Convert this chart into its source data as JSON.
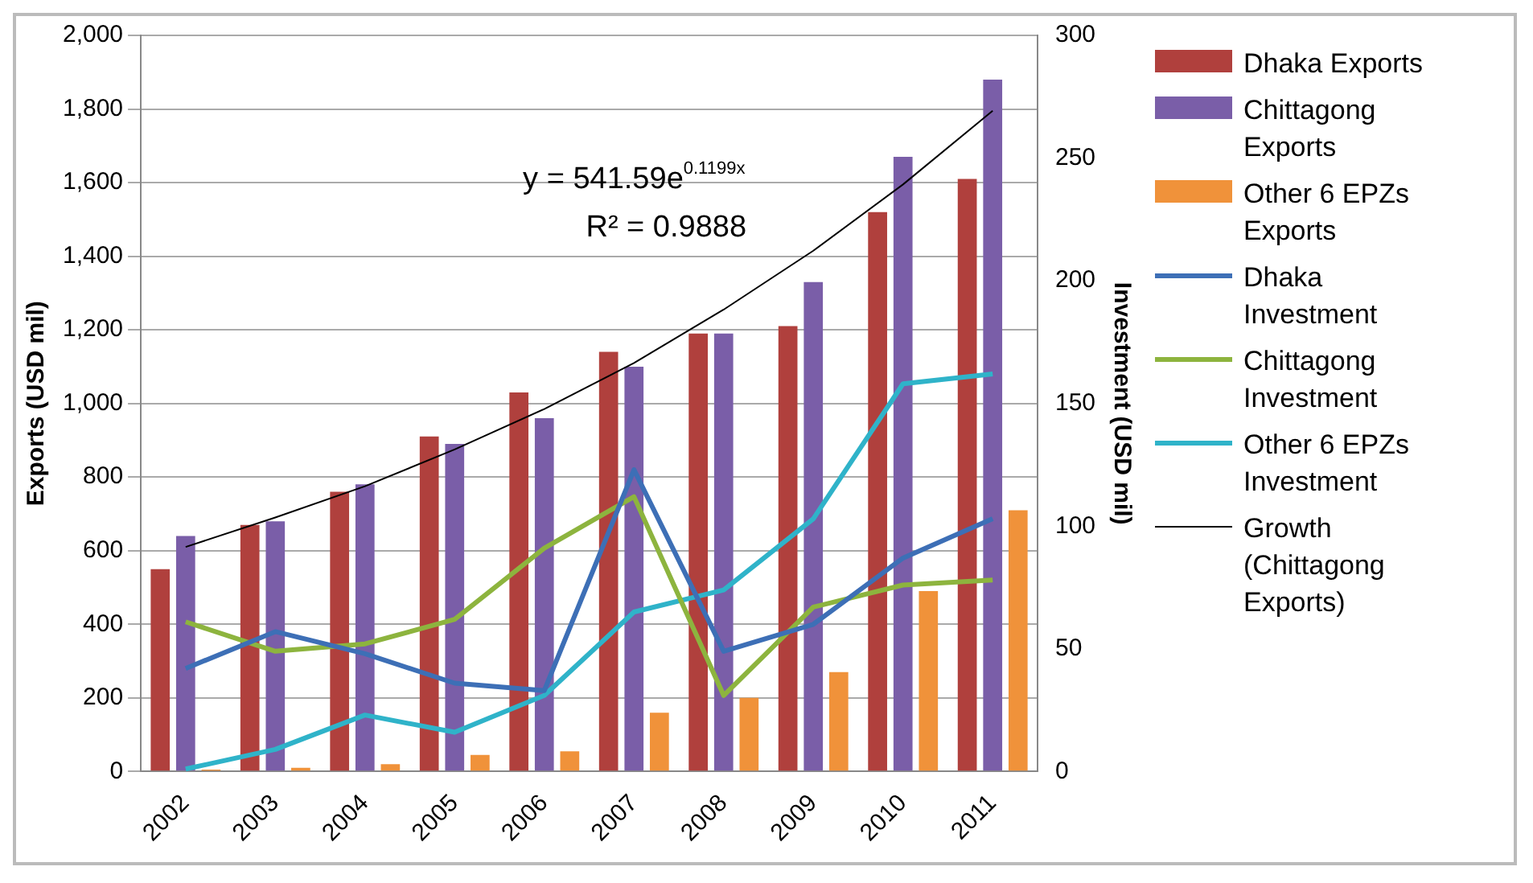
{
  "chart_data": {
    "type": "bar",
    "ylabel": "Exports (USD mil)",
    "y2label": "Investment (USD mil)",
    "categories": [
      "2002",
      "2003",
      "2004",
      "2005",
      "2006",
      "2007",
      "2008",
      "2009",
      "2010",
      "2011"
    ],
    "series": [
      {
        "name": "Dhaka Exports",
        "color": "#b0403d",
        "values": [
          550,
          670,
          760,
          910,
          1030,
          1140,
          1190,
          1210,
          1520,
          1610
        ]
      },
      {
        "name": "Chittagong Exports",
        "color": "#7a5ea8",
        "values": [
          640,
          680,
          780,
          890,
          960,
          1100,
          1190,
          1330,
          1670,
          1880
        ]
      },
      {
        "name": "Other 6 EPZs Exports",
        "color": "#f0923a",
        "values": [
          5,
          10,
          20,
          45,
          55,
          160,
          200,
          270,
          490,
          710
        ]
      },
      {
        "name": "Dhaka Investment",
        "type": "line",
        "axis": "y2",
        "color": "#3d6fb6",
        "values": [
          42,
          57,
          48,
          36,
          33,
          123,
          49,
          60,
          87,
          103
        ]
      },
      {
        "name": "Chittagong Investment",
        "type": "line",
        "axis": "y2",
        "color": "#8db43e",
        "values": [
          61,
          49,
          52,
          62,
          91,
          112,
          31,
          67,
          76,
          78
        ]
      },
      {
        "name": "Other 6 EPZs Investment",
        "type": "line",
        "axis": "y2",
        "color": "#2fb3c9",
        "values": [
          1,
          9,
          23,
          16,
          31,
          65,
          74,
          103,
          158,
          162
        ]
      },
      {
        "name": "Growth (Chittagong Exports)",
        "type": "line",
        "color": "#000000",
        "values": [
          610,
          690,
          775,
          875,
          985,
          1110,
          1255,
          1415,
          1595,
          1795
        ]
      }
    ],
    "ylim": [
      0,
      2000
    ],
    "yticks": [
      0,
      200,
      400,
      600,
      800,
      {
        "value": 1000,
        "label": "1,000"
      },
      {
        "value": 1200,
        "label": "1,200"
      },
      {
        "value": 1400,
        "label": "1,400"
      },
      {
        "value": 1600,
        "label": "1,600"
      },
      {
        "value": 1800,
        "label": "1,800"
      },
      {
        "value": 2000,
        "label": "2,000"
      }
    ],
    "y2lim": [
      0,
      300
    ],
    "y2ticks": [
      0,
      50,
      100,
      150,
      200,
      250,
      300
    ],
    "annotations": [
      "y = 541.59e$^{0.1199x}$",
      "R² = 0.9888"
    ],
    "grid": "y",
    "legend": "right",
    "marker": "none",
    "line_style": "solid"
  }
}
